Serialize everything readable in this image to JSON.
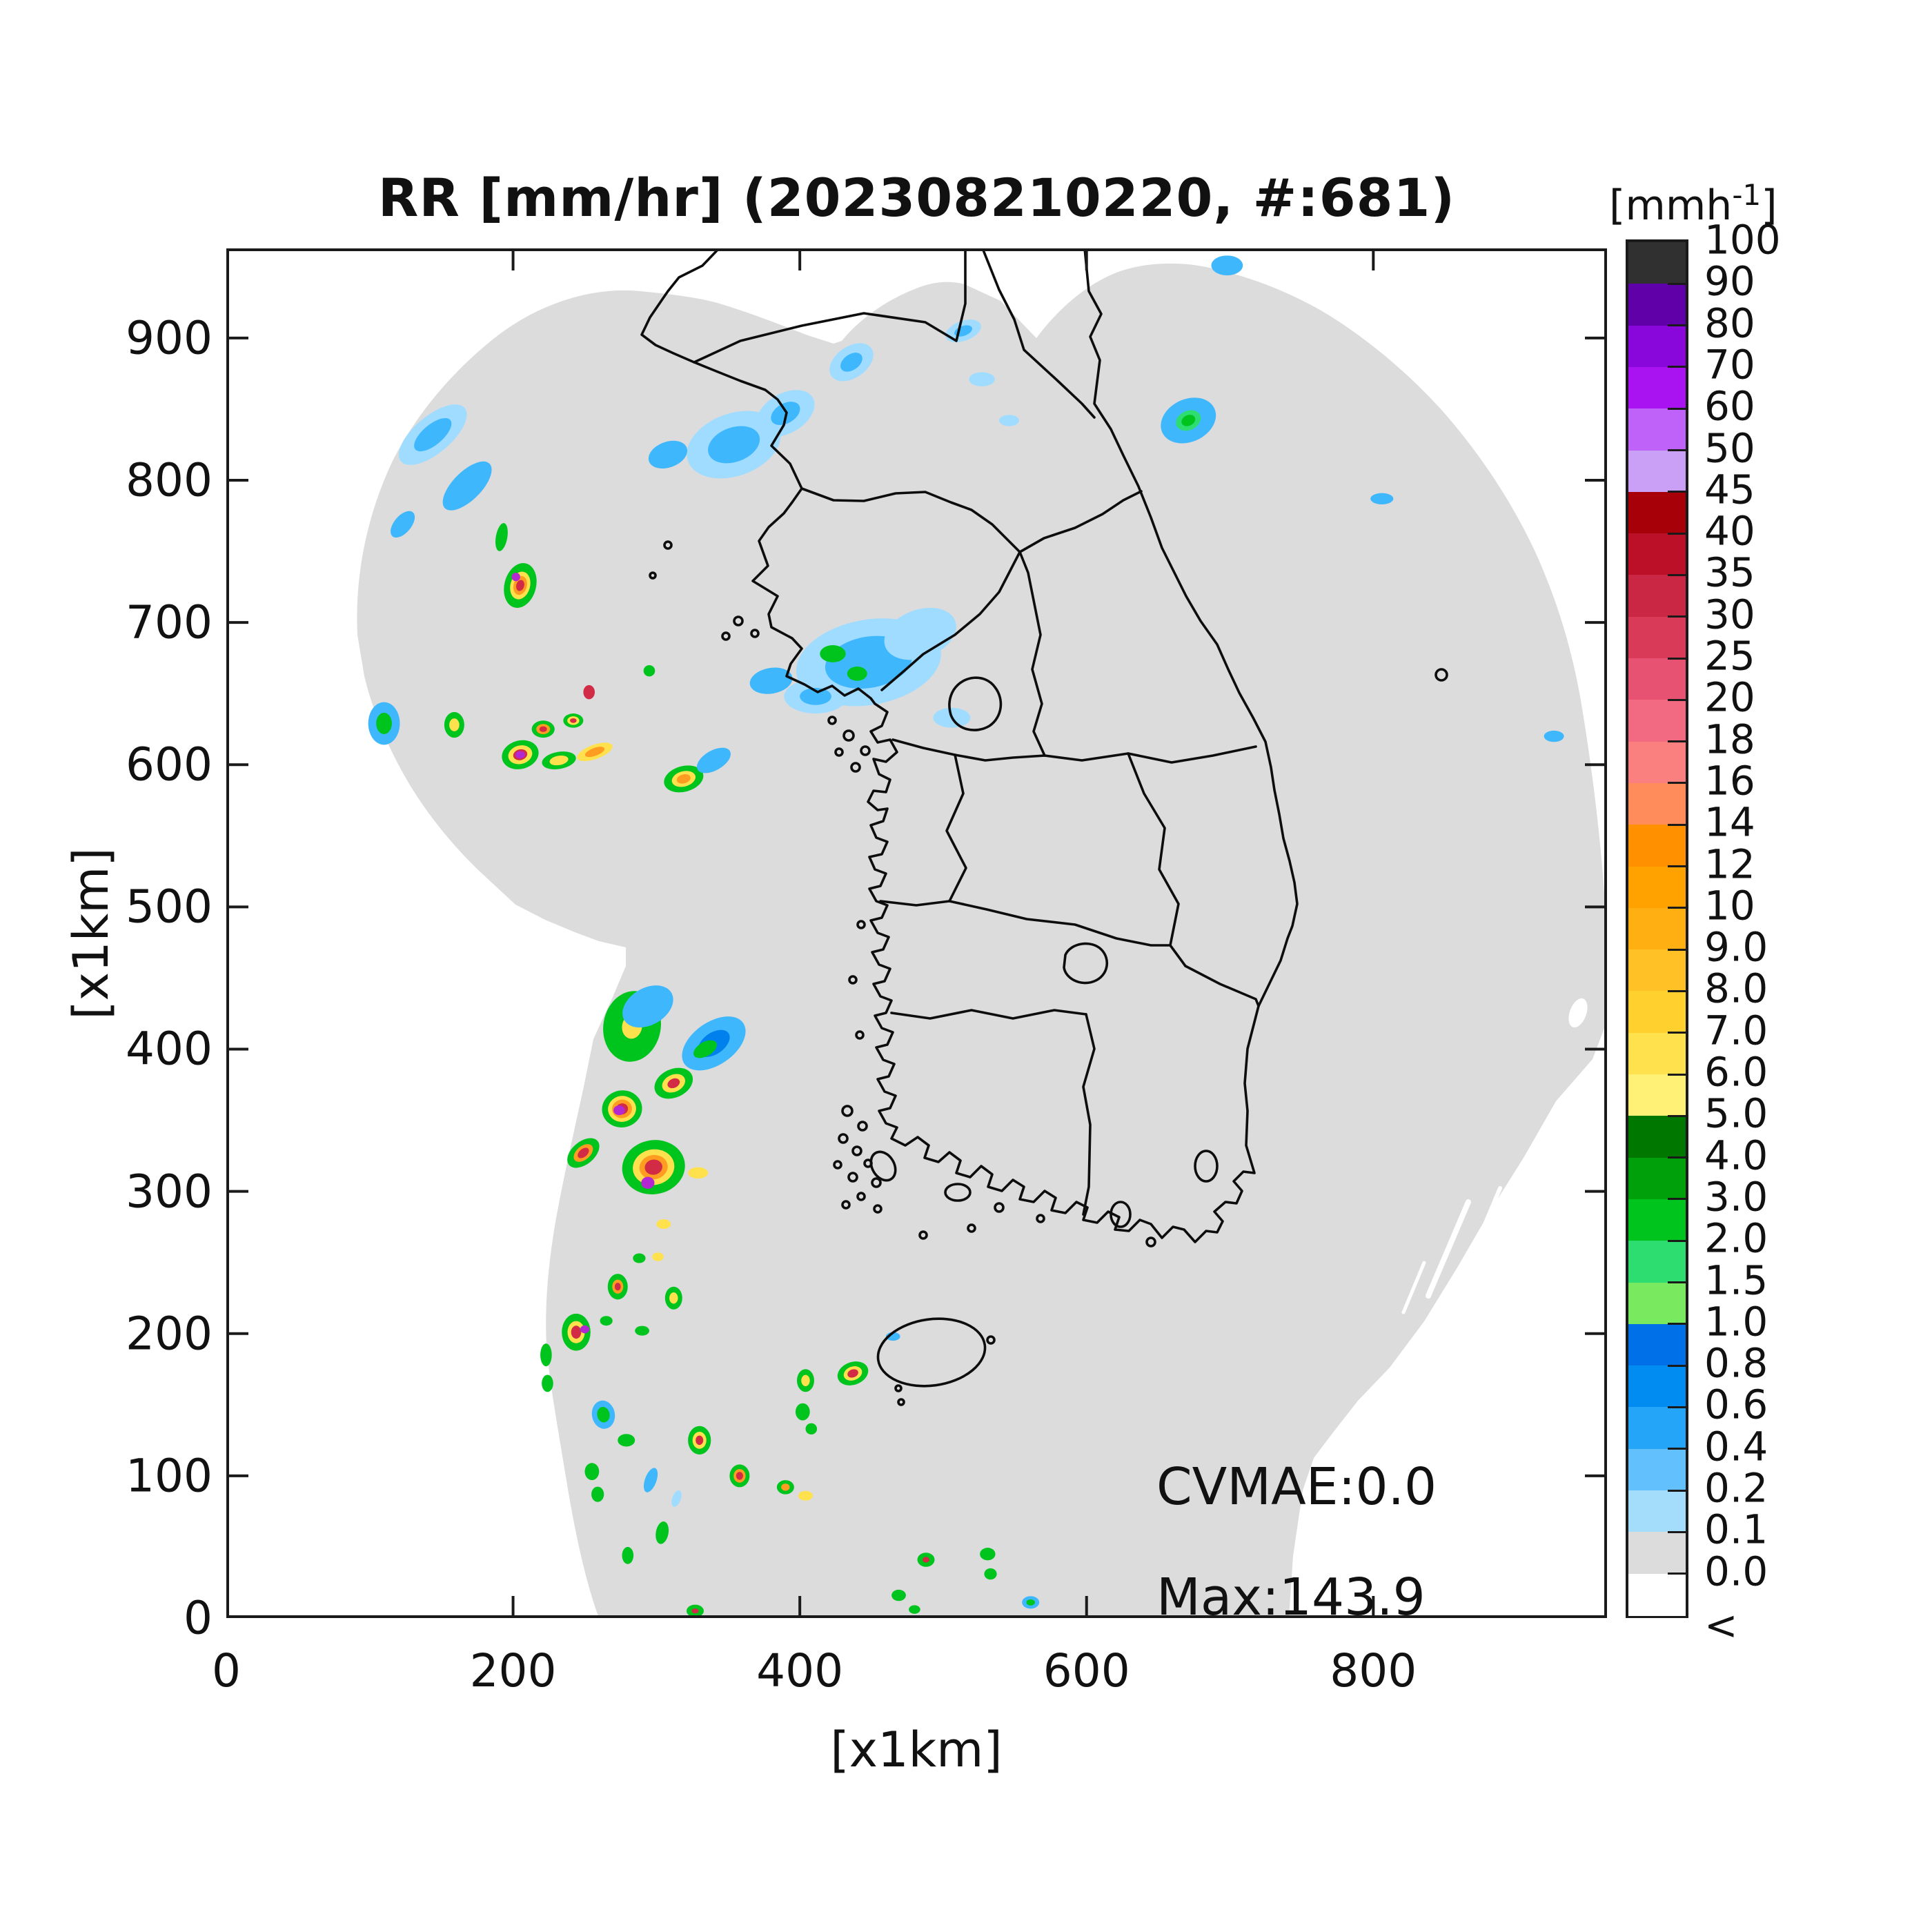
{
  "title": "RR [mm/hr] (202308210220, #:681)",
  "annotations": {
    "cvmae": "CVMAE:0.0",
    "max": "Max:143.9"
  },
  "colorbar": {
    "unit_base": "[mmh",
    "unit_exp": "-1",
    "unit_close": "]",
    "labels_top_to_bottom": [
      "100",
      "90",
      "80",
      "70",
      "60",
      "50",
      "45",
      "40",
      "35",
      "30",
      "25",
      "20",
      "18",
      "16",
      "14",
      "12",
      "10",
      "9.0",
      "8.0",
      "7.0",
      "6.0",
      "5.0",
      "4.0",
      "3.0",
      "2.0",
      "1.5",
      "1.0",
      "0.8",
      "0.6",
      "0.4",
      "0.2",
      "0.1",
      "0.0",
      "<"
    ],
    "colors_top_to_bottom": [
      "#303030",
      "#5F00A8",
      "#8A07DB",
      "#A913F2",
      "#BE62FA",
      "#C9A0F5",
      "#A80008",
      "#BC1028",
      "#C92743",
      "#D93A58",
      "#E75272",
      "#F26A81",
      "#FA8080",
      "#FF8C5A",
      "#FF9100",
      "#FFA200",
      "#FFAF12",
      "#FFC125",
      "#FFD02E",
      "#FFE14D",
      "#FFF176",
      "#007800",
      "#00A00A",
      "#00C41E",
      "#2EDD70",
      "#79E95F",
      "#0070E8",
      "#008CF0",
      "#24A5F8",
      "#62C1FC",
      "#A4DDFB",
      "#DCDCDC",
      "#FFFFFF"
    ]
  },
  "axes": {
    "x": {
      "label": "[x1km]",
      "ticks": [
        0,
        200,
        400,
        600,
        800
      ],
      "range": [
        0,
        963
      ]
    },
    "y": {
      "label": "[x1km]",
      "ticks": [
        0,
        100,
        200,
        300,
        400,
        500,
        600,
        700,
        800,
        900
      ],
      "range": [
        0,
        963
      ]
    }
  },
  "palette": {
    "lb": "#A0DCFF",
    "b": "#3FB7FC",
    "db": "#0080EC",
    "c": "#2EDD70",
    "g": "#00C41E",
    "y": "#FFE14D",
    "o": "#FF9C22",
    "r": "#D22B45",
    "m": "#B428D2"
  },
  "map_colors": {
    "coverage": "#DCDCDC",
    "outside": "#FFFFFF",
    "boundary": "#0D0D0D"
  },
  "chart_data": {
    "type": "heatmap",
    "title": "RR [mm/hr] (202308210220, #:681)",
    "units": "mm/hr",
    "timestamp": "202308210220",
    "sample_count": 681,
    "cvmae": 0.0,
    "max_value": 143.9,
    "x_range_km": [
      0,
      963
    ],
    "y_range_km": [
      0,
      963
    ],
    "legend_levels": [
      0.0,
      0.1,
      0.2,
      0.4,
      0.6,
      0.8,
      1.0,
      1.5,
      2.0,
      3.0,
      4.0,
      5.0,
      6.0,
      7.0,
      8.0,
      9.0,
      10,
      12,
      14,
      16,
      18,
      20,
      25,
      30,
      35,
      40,
      45,
      50,
      60,
      70,
      80,
      90,
      100
    ],
    "cells_note": "x,y,rx,ry in km (plot coords); rot in deg; rings = colorkey:relative-size outer to inner",
    "cells": [
      [
        354,
        825,
        34,
        22,
        -20,
        "lb:1|b:0.55"
      ],
      [
        390,
        847,
        22,
        14,
        -30,
        "lb:1|b:0.5"
      ],
      [
        436,
        883,
        17,
        11,
        -35,
        "lb:1|b:0.5"
      ],
      [
        308,
        818,
        14,
        9,
        -20,
        "b:1"
      ],
      [
        698,
        951,
        11,
        7,
        0,
        "b:1"
      ],
      [
        144,
        832,
        29,
        13,
        -40,
        "lb:1|b:0.55"
      ],
      [
        168,
        796,
        22,
        10,
        -45,
        "b:1"
      ],
      [
        123,
        769,
        11,
        6,
        -50,
        "b:1"
      ],
      [
        110,
        629,
        11,
        15,
        0,
        "b:1|g:0.5"
      ],
      [
        448,
        672,
        51,
        30,
        -10,
        "lb:1|b:0.6"
      ],
      [
        484,
        692,
        26,
        17,
        -20,
        "lb:1"
      ],
      [
        411,
        648,
        22,
        12,
        0,
        "lb:1|b:0.5"
      ],
      [
        380,
        659,
        15,
        9,
        -10,
        "b:1"
      ],
      [
        423,
        678,
        9,
        6,
        0,
        "g:1"
      ],
      [
        440,
        664,
        7,
        5,
        0,
        "g:1"
      ],
      [
        506,
        633,
        13,
        7,
        0,
        "lb:1"
      ],
      [
        514,
        905,
        13,
        7,
        -20,
        "lb:1|b:0.5"
      ],
      [
        527,
        871,
        9,
        5,
        0,
        "lb:1"
      ],
      [
        546,
        842,
        7,
        4,
        0,
        "lb:1"
      ],
      [
        671,
        842,
        20,
        15,
        -25,
        "b:1|c:0.45|g:0.25"
      ],
      [
        806,
        787,
        8,
        4,
        0,
        "b:1"
      ],
      [
        926,
        620,
        7,
        4,
        0,
        "b:1"
      ],
      [
        205,
        726,
        11,
        16,
        15,
        "g:1|y:0.62|o:0.42|r:0.25"
      ],
      [
        202,
        732,
        3,
        3,
        0,
        "m:1"
      ],
      [
        192,
        760,
        4,
        10,
        10,
        "g:1"
      ],
      [
        159,
        628,
        7,
        9,
        0,
        "g:1|y:0.5"
      ],
      [
        221,
        625,
        8,
        6,
        0,
        "g:1|o:0.6|r:0.33"
      ],
      [
        242,
        631,
        7,
        5,
        0,
        "g:1|y:0.6|r:0.33"
      ],
      [
        205,
        607,
        13,
        10,
        -15,
        "g:1|y:0.65|r:0.38"
      ],
      [
        205,
        607,
        3.4,
        2.6,
        0,
        "m:1"
      ],
      [
        232,
        603,
        12,
        6,
        -10,
        "g:1|y:0.55"
      ],
      [
        257,
        609,
        13,
        5,
        -20,
        "y:1|o:0.55"
      ],
      [
        319,
        590,
        14,
        9,
        -15,
        "g:1|y:0.6|o:0.35"
      ],
      [
        340,
        603,
        13,
        7,
        -30,
        "b:1"
      ],
      [
        253,
        651,
        4,
        5,
        0,
        "r:1"
      ],
      [
        295,
        666,
        4,
        4,
        0,
        "g:1"
      ],
      [
        283,
        416,
        20,
        25,
        10,
        "g:1|y:0.35"
      ],
      [
        294,
        430,
        19,
        13,
        -30,
        "b:1"
      ],
      [
        340,
        404,
        25,
        15,
        -35,
        "b:1|db:0.5"
      ],
      [
        334,
        400,
        9,
        5,
        -30,
        "g:1"
      ],
      [
        276,
        358,
        14,
        13,
        -10,
        "g:1|y:0.7|o:0.5|r:0.3"
      ],
      [
        274,
        357,
        4,
        3.4,
        0,
        "m:1"
      ],
      [
        312,
        376,
        14,
        10,
        -25,
        "g:1|y:0.6|r:0.32"
      ],
      [
        249,
        327,
        13,
        8,
        -40,
        "g:1|o:0.6|r:0.35"
      ],
      [
        298,
        317,
        22,
        19,
        -10,
        "g:1|y:0.66|o:0.45|r:0.28"
      ],
      [
        294,
        306,
        4.6,
        4.2,
        0,
        "m:1"
      ],
      [
        329,
        313,
        7,
        4,
        0,
        "y:1"
      ],
      [
        305,
        277,
        5,
        3.4,
        0,
        "y:1"
      ],
      [
        288,
        253,
        4.4,
        3.4,
        0,
        "g:1"
      ],
      [
        301,
        254,
        4,
        3,
        0,
        "y:1"
      ],
      [
        273,
        233,
        7,
        9,
        0,
        "g:1|o:0.55|r:0.3"
      ],
      [
        312,
        225,
        6,
        8,
        0,
        "g:1|y:0.5"
      ],
      [
        244,
        201,
        10,
        13,
        0,
        "g:1|y:0.6|r:0.35"
      ],
      [
        250,
        203,
        3.2,
        2.8,
        0,
        "m:1"
      ],
      [
        265,
        209,
        4.4,
        3.4,
        0,
        "g:1"
      ],
      [
        290,
        202,
        5,
        3.4,
        0,
        "g:1"
      ],
      [
        223,
        185,
        4,
        8,
        0,
        "g:1"
      ],
      [
        224,
        165,
        4,
        6,
        0,
        "g:1"
      ],
      [
        263,
        143,
        8,
        10,
        -10,
        "b:1|g:0.55"
      ],
      [
        279,
        125,
        6,
        4.4,
        0,
        "g:1"
      ],
      [
        255,
        103,
        5,
        6,
        0,
        "g:1"
      ],
      [
        259,
        87,
        4.4,
        5.4,
        0,
        "g:1"
      ],
      [
        330,
        125,
        8,
        10,
        0,
        "g:1|y:0.6|r:0.33"
      ],
      [
        358,
        100,
        7,
        8,
        0,
        "g:1|o:0.6|r:0.35"
      ],
      [
        390,
        92,
        6,
        5,
        0,
        "g:1|o:0.5"
      ],
      [
        404,
        86,
        5,
        3.4,
        0,
        "y:1"
      ],
      [
        296,
        97,
        4,
        9,
        20,
        "b:1"
      ],
      [
        314,
        84,
        3,
        6,
        20,
        "lb:1"
      ],
      [
        304,
        60,
        4.4,
        8,
        10,
        "g:1"
      ],
      [
        280,
        44,
        4,
        6,
        0,
        "g:1"
      ],
      [
        437,
        172,
        11,
        8,
        -20,
        "g:1|y:0.6|r:0.35"
      ],
      [
        404,
        167,
        6,
        8,
        0,
        "g:1|y:0.5"
      ],
      [
        402,
        145,
        5,
        6,
        0,
        "g:1"
      ],
      [
        408,
        133,
        4,
        4,
        0,
        "g:1"
      ],
      [
        465,
        198,
        5,
        3,
        0,
        "b:1"
      ],
      [
        488,
        41,
        6,
        5,
        0,
        "g:1|r:0.4"
      ],
      [
        531,
        45,
        5.4,
        4.4,
        0,
        "g:1"
      ],
      [
        533,
        31,
        4.4,
        4,
        0,
        "g:1"
      ],
      [
        561,
        11,
        6,
        4.4,
        0,
        "b:1|g:0.5"
      ],
      [
        469,
        16,
        5,
        4,
        0,
        "g:1"
      ],
      [
        480,
        6,
        4,
        3,
        0,
        "g:1"
      ],
      [
        327,
        5,
        6,
        4.4,
        0,
        "g:1|r:0.4"
      ]
    ]
  }
}
